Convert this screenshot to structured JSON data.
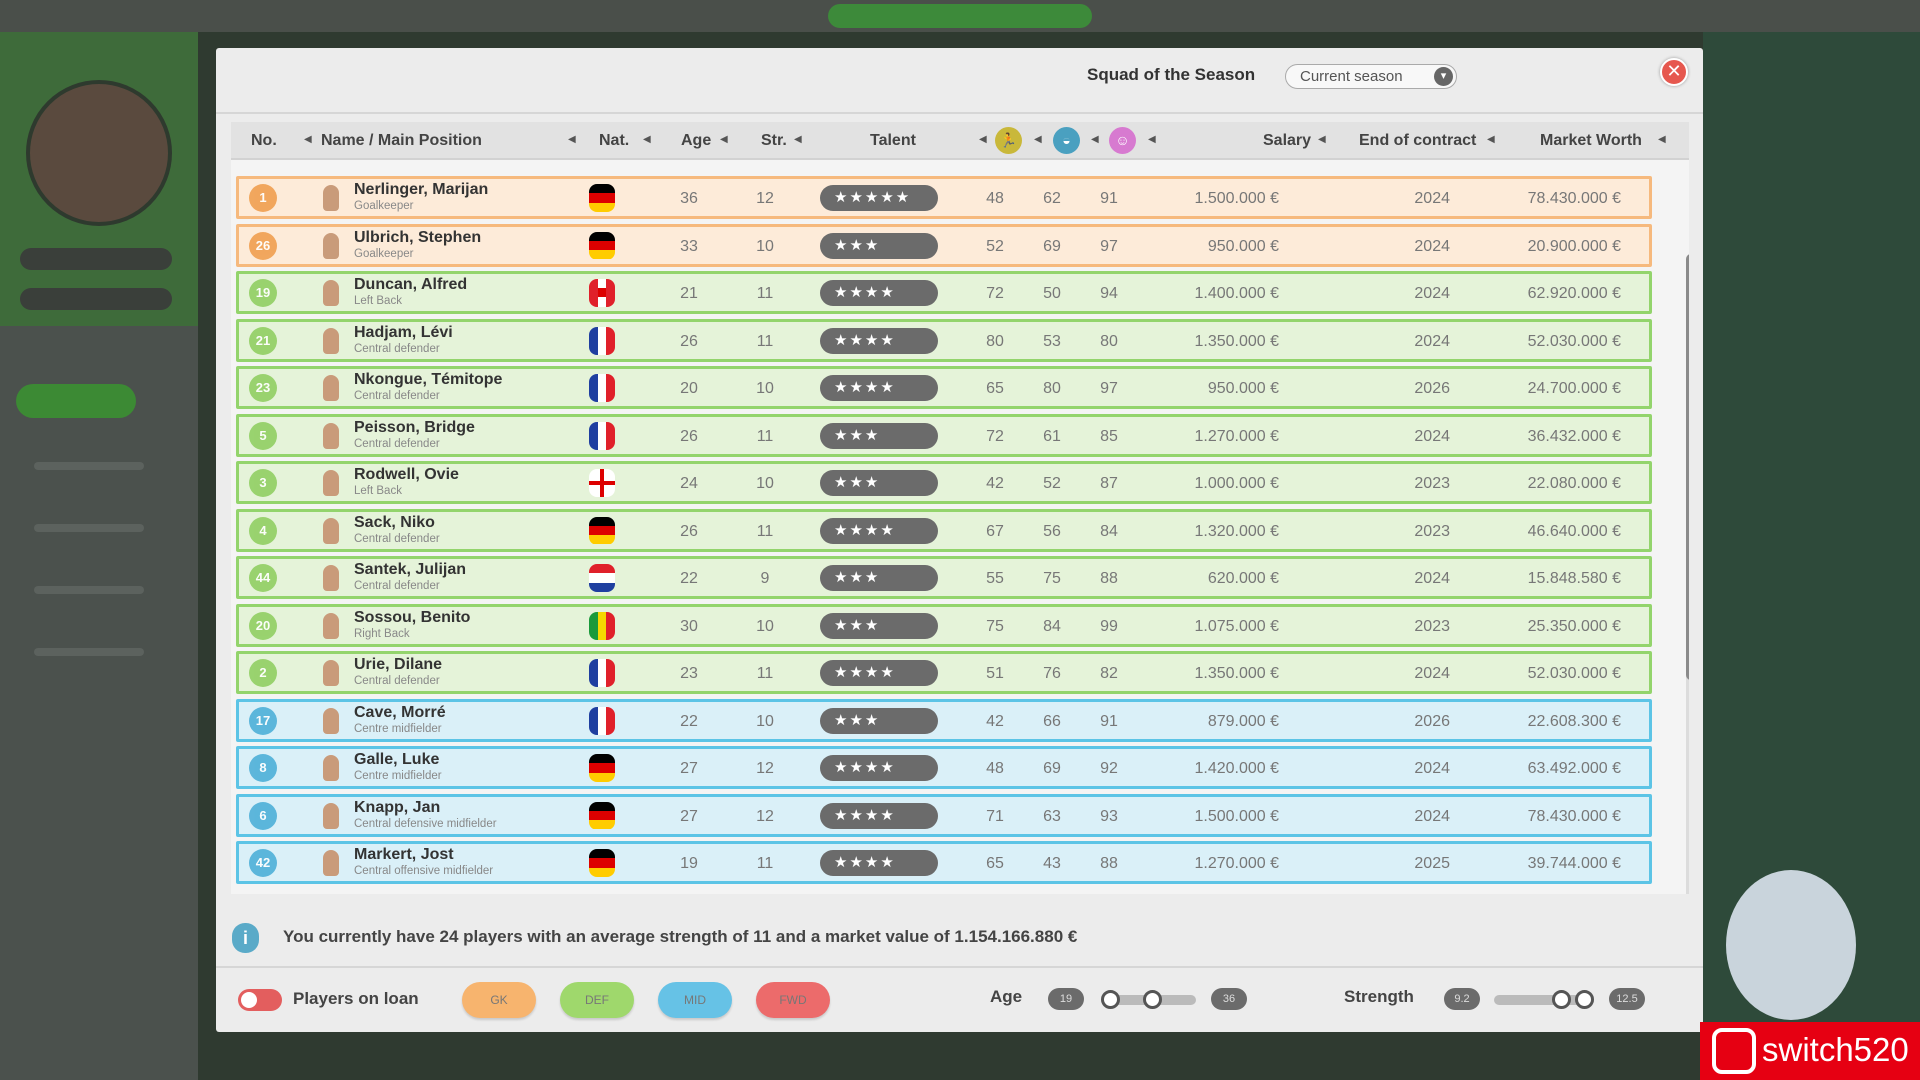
{
  "modal": {
    "title": "Squad of the Season",
    "season_select": "Current season",
    "close_label": "✕"
  },
  "columns": {
    "no": "No.",
    "name": "Name / Main Position",
    "nat": "Nat.",
    "age": "Age",
    "str": "Str.",
    "talent": "Talent",
    "salary": "Salary",
    "contract": "End of contract",
    "market": "Market Worth"
  },
  "stat_icons": [
    {
      "name": "running-icon",
      "color": "#c9b83a"
    },
    {
      "name": "ball-icon",
      "color": "#4aa0c0"
    },
    {
      "name": "smiley-icon",
      "color": "#d77ad0"
    }
  ],
  "group_colors": {
    "GK": {
      "bg": "#fdebd9",
      "border": "#f6b97d",
      "badge": "#ef9b48"
    },
    "DEF": {
      "bg": "#e5f3d9",
      "border": "#93d46c",
      "badge": "#8ccd5c"
    },
    "MID": {
      "bg": "#daf0f8",
      "border": "#5cc4e6",
      "badge": "#46acd6"
    }
  },
  "players": [
    {
      "no": "1",
      "name": "Nerlinger, Marijan",
      "pos": "Goalkeeper",
      "nat": "germany",
      "age": "36",
      "str": "12",
      "talent": 5,
      "s1": "48",
      "s2": "62",
      "s3": "91",
      "salary": "1.500.000 €",
      "contract": "2024",
      "market": "78.430.000 €",
      "group": "GK"
    },
    {
      "no": "26",
      "name": "Ulbrich, Stephen",
      "pos": "Goalkeeper",
      "nat": "germany",
      "age": "33",
      "str": "10",
      "talent": 3,
      "s1": "52",
      "s2": "69",
      "s3": "97",
      "salary": "950.000 €",
      "contract": "2024",
      "market": "20.900.000 €",
      "group": "GK"
    },
    {
      "no": "19",
      "name": "Duncan, Alfred",
      "pos": "Left Back",
      "nat": "canada",
      "age": "21",
      "str": "11",
      "talent": 4,
      "s1": "72",
      "s2": "50",
      "s3": "94",
      "salary": "1.400.000 €",
      "contract": "2024",
      "market": "62.920.000 €",
      "group": "DEF"
    },
    {
      "no": "21",
      "name": "Hadjam, Lévi",
      "pos": "Central defender",
      "nat": "france",
      "age": "26",
      "str": "11",
      "talent": 4,
      "s1": "80",
      "s2": "53",
      "s3": "80",
      "salary": "1.350.000 €",
      "contract": "2024",
      "market": "52.030.000 €",
      "group": "DEF"
    },
    {
      "no": "23",
      "name": "Nkongue, Témitope",
      "pos": "Central defender",
      "nat": "france",
      "age": "20",
      "str": "10",
      "talent": 4,
      "s1": "65",
      "s2": "80",
      "s3": "97",
      "salary": "950.000 €",
      "contract": "2026",
      "market": "24.700.000 €",
      "group": "DEF"
    },
    {
      "no": "5",
      "name": "Peisson, Bridge",
      "pos": "Central defender",
      "nat": "france",
      "age": "26",
      "str": "11",
      "talent": 3,
      "s1": "72",
      "s2": "61",
      "s3": "85",
      "salary": "1.270.000 €",
      "contract": "2024",
      "market": "36.432.000 €",
      "group": "DEF"
    },
    {
      "no": "3",
      "name": "Rodwell, Ovie",
      "pos": "Left Back",
      "nat": "england",
      "age": "24",
      "str": "10",
      "talent": 3,
      "s1": "42",
      "s2": "52",
      "s3": "87",
      "salary": "1.000.000 €",
      "contract": "2023",
      "market": "22.080.000 €",
      "group": "DEF"
    },
    {
      "no": "4",
      "name": "Sack, Niko",
      "pos": "Central defender",
      "nat": "germany",
      "age": "26",
      "str": "11",
      "talent": 4,
      "s1": "67",
      "s2": "56",
      "s3": "84",
      "salary": "1.320.000 €",
      "contract": "2023",
      "market": "46.640.000 €",
      "group": "DEF"
    },
    {
      "no": "44",
      "name": "Santek, Julijan",
      "pos": "Central defender",
      "nat": "croatia",
      "age": "22",
      "str": "9",
      "talent": 3,
      "s1": "55",
      "s2": "75",
      "s3": "88",
      "salary": "620.000 €",
      "contract": "2024",
      "market": "15.848.580 €",
      "group": "DEF"
    },
    {
      "no": "20",
      "name": "Sossou, Benito",
      "pos": "Right Back",
      "nat": "senegal",
      "age": "30",
      "str": "10",
      "talent": 3,
      "s1": "75",
      "s2": "84",
      "s3": "99",
      "salary": "1.075.000 €",
      "contract": "2023",
      "market": "25.350.000 €",
      "group": "DEF"
    },
    {
      "no": "2",
      "name": "Urie, Dilane",
      "pos": "Central defender",
      "nat": "france",
      "age": "23",
      "str": "11",
      "talent": 4,
      "s1": "51",
      "s2": "76",
      "s3": "82",
      "salary": "1.350.000 €",
      "contract": "2024",
      "market": "52.030.000 €",
      "group": "DEF"
    },
    {
      "no": "17",
      "name": "Cave, Morré",
      "pos": "Centre midfielder",
      "nat": "france",
      "age": "22",
      "str": "10",
      "talent": 3,
      "s1": "42",
      "s2": "66",
      "s3": "91",
      "salary": "879.000 €",
      "contract": "2026",
      "market": "22.608.300 €",
      "group": "MID"
    },
    {
      "no": "8",
      "name": "Galle, Luke",
      "pos": "Centre midfielder",
      "nat": "germany",
      "age": "27",
      "str": "12",
      "talent": 4,
      "s1": "48",
      "s2": "69",
      "s3": "92",
      "salary": "1.420.000 €",
      "contract": "2024",
      "market": "63.492.000 €",
      "group": "MID"
    },
    {
      "no": "6",
      "name": "Knapp, Jan",
      "pos": "Central defensive midfielder",
      "nat": "germany",
      "age": "27",
      "str": "12",
      "talent": 4,
      "s1": "71",
      "s2": "63",
      "s3": "93",
      "salary": "1.500.000 €",
      "contract": "2024",
      "market": "78.430.000 €",
      "group": "MID"
    },
    {
      "no": "42",
      "name": "Markert, Jost",
      "pos": "Central offensive midfielder",
      "nat": "germany",
      "age": "19",
      "str": "11",
      "talent": 4,
      "s1": "65",
      "s2": "43",
      "s3": "88",
      "salary": "1.270.000 €",
      "contract": "2025",
      "market": "39.744.000 €",
      "group": "MID"
    }
  ],
  "info": {
    "text": "You currently have 24 players with an average strength of 11 and a market value of 1.154.166.880 €"
  },
  "filters": {
    "loan_label": "Players on loan",
    "gk": "GK",
    "def": "DEF",
    "mid": "MID",
    "fwd": "FWD",
    "age_label": "Age",
    "age_min": "19",
    "age_max": "36",
    "strength_label": "Strength",
    "str_min": "9.2",
    "str_max": "12.5"
  },
  "watermark": "switch520"
}
